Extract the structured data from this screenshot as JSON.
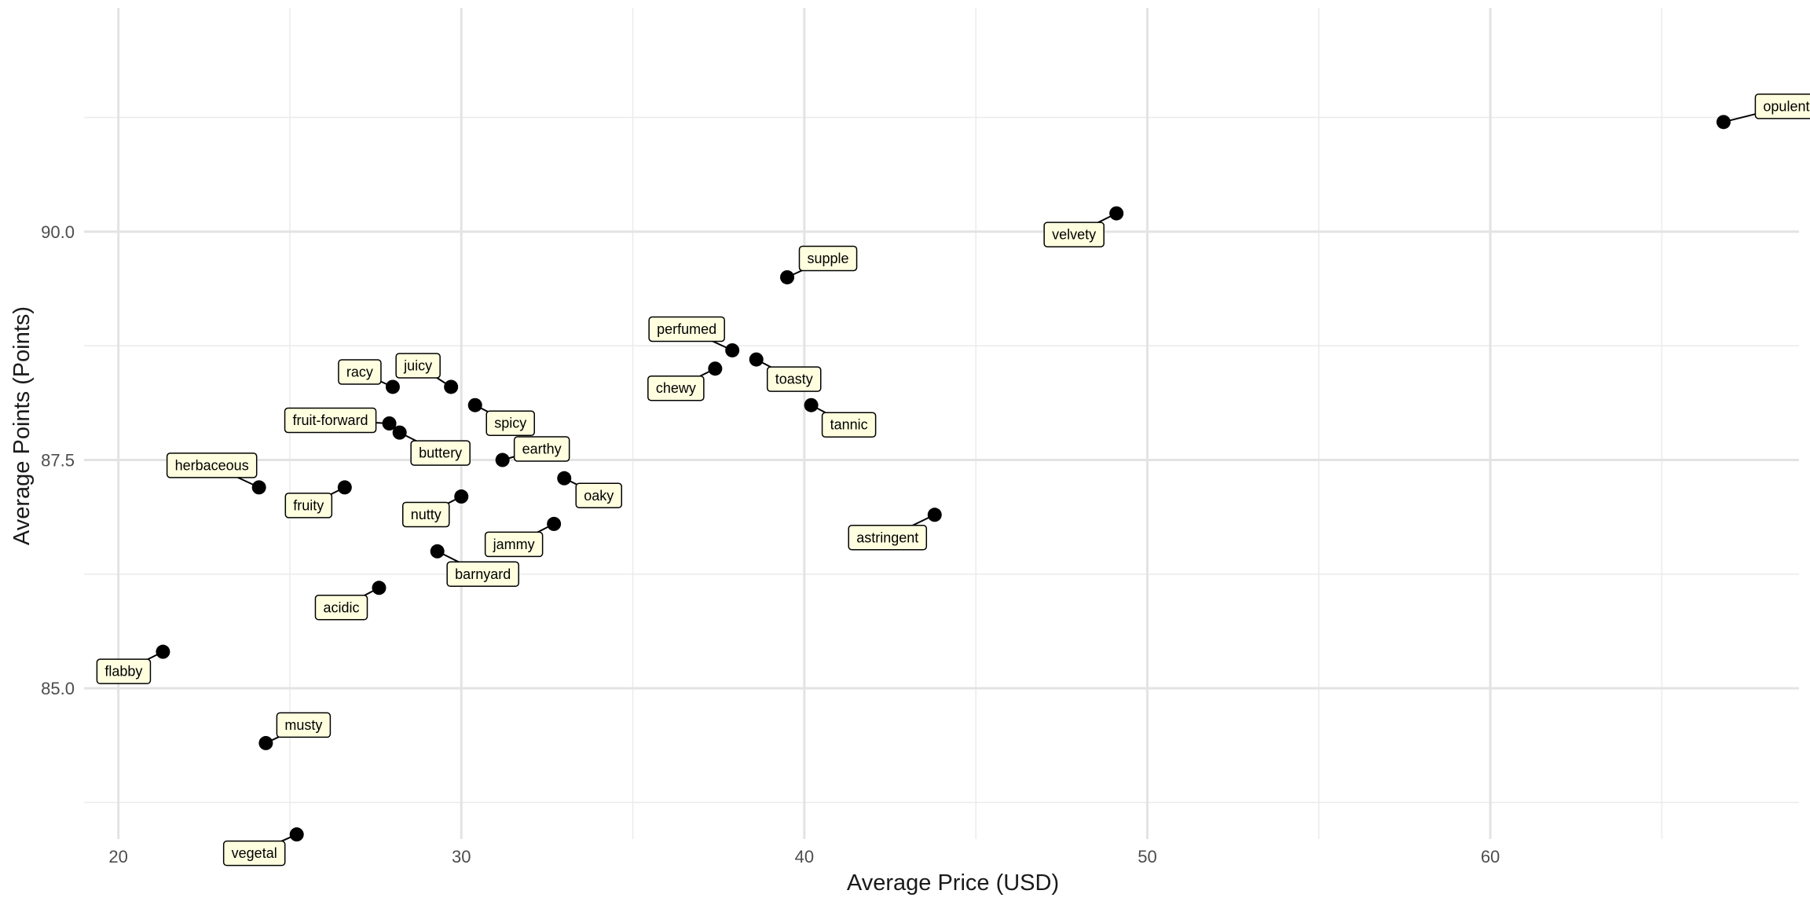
{
  "chart_data": {
    "type": "scatter",
    "title": "",
    "xlabel": "Average Price (USD)",
    "ylabel": "Average Points (Points)",
    "xlim": [
      19,
      69
    ],
    "ylim": [
      83.35,
      92.45
    ],
    "x_ticks": [
      20,
      30,
      40,
      50,
      60
    ],
    "x_tick_labels": [
      "20",
      "30",
      "40",
      "50",
      "60"
    ],
    "x_minor_ticks": [
      25,
      35,
      45,
      55,
      65
    ],
    "y_ticks": [
      85.0,
      87.5,
      90.0
    ],
    "y_tick_labels": [
      "85.0",
      "87.5",
      "90.0"
    ],
    "y_minor_ticks": [
      83.75,
      86.25,
      88.75,
      91.25
    ],
    "grid": true,
    "point_color": "#000000",
    "label_fill": "#ffffe0",
    "label_border": "#000000",
    "points": [
      {
        "label": "opulent",
        "x": 66.8,
        "y": 91.2
      },
      {
        "label": "velvety",
        "x": 49.1,
        "y": 90.2
      },
      {
        "label": "supple",
        "x": 39.5,
        "y": 89.5
      },
      {
        "label": "perfumed",
        "x": 37.9,
        "y": 88.7
      },
      {
        "label": "toasty",
        "x": 38.6,
        "y": 88.6
      },
      {
        "label": "chewy",
        "x": 37.4,
        "y": 88.5
      },
      {
        "label": "tannic",
        "x": 40.2,
        "y": 88.1
      },
      {
        "label": "astringent",
        "x": 43.8,
        "y": 86.9
      },
      {
        "label": "racy",
        "x": 28.0,
        "y": 88.3
      },
      {
        "label": "juicy",
        "x": 29.7,
        "y": 88.3
      },
      {
        "label": "spicy",
        "x": 30.4,
        "y": 88.1
      },
      {
        "label": "fruit-forward",
        "x": 27.9,
        "y": 87.9
      },
      {
        "label": "buttery",
        "x": 28.2,
        "y": 87.8
      },
      {
        "label": "earthy",
        "x": 31.2,
        "y": 87.5
      },
      {
        "label": "herbaceous",
        "x": 24.1,
        "y": 87.2
      },
      {
        "label": "fruity",
        "x": 26.6,
        "y": 87.2
      },
      {
        "label": "oaky",
        "x": 33.0,
        "y": 87.3
      },
      {
        "label": "nutty",
        "x": 30.0,
        "y": 87.1
      },
      {
        "label": "jammy",
        "x": 32.7,
        "y": 86.8
      },
      {
        "label": "barnyard",
        "x": 29.3,
        "y": 86.5
      },
      {
        "label": "acidic",
        "x": 27.6,
        "y": 86.1
      },
      {
        "label": "flabby",
        "x": 21.3,
        "y": 85.4
      },
      {
        "label": "musty",
        "x": 24.3,
        "y": 84.4
      },
      {
        "label": "vegetal",
        "x": 25.2,
        "y": 83.4
      }
    ]
  }
}
